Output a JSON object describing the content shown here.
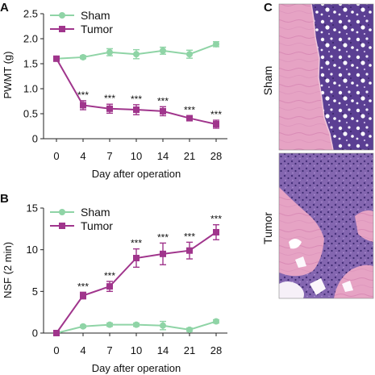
{
  "panels": {
    "a": {
      "letter": "A"
    },
    "b": {
      "letter": "B"
    },
    "c": {
      "letter": "C",
      "top_label": "Sham",
      "bottom_label": "Tumor"
    }
  },
  "chart_data": [
    {
      "panel": "A",
      "type": "line",
      "xlabel": "Day after operation",
      "ylabel": "PWMT (g)",
      "categories": [
        "0",
        "4",
        "7",
        "10",
        "14",
        "21",
        "28"
      ],
      "ylim": [
        0,
        2.5
      ],
      "yticks": [
        "0",
        "0.5",
        "1.0",
        "1.5",
        "2.0",
        "2.5"
      ],
      "legend": "top-left",
      "series": [
        {
          "name": "Sham",
          "color": "#8fd4a6",
          "marker": "circle",
          "values": [
            1.6,
            1.63,
            1.73,
            1.69,
            1.76,
            1.69,
            1.89
          ],
          "errors": [
            0.04,
            0.03,
            0.07,
            0.09,
            0.07,
            0.08,
            0.05
          ]
        },
        {
          "name": "Tumor",
          "color": "#a0358c",
          "marker": "square",
          "values": [
            1.6,
            0.67,
            0.6,
            0.58,
            0.55,
            0.41,
            0.29
          ],
          "errors": [
            0.04,
            0.09,
            0.09,
            0.1,
            0.09,
            0.05,
            0.08
          ],
          "annotations": [
            "",
            "***",
            "***",
            "***",
            "***",
            "***",
            "***"
          ]
        }
      ]
    },
    {
      "panel": "B",
      "type": "line",
      "xlabel": "Day after operation",
      "ylabel": "NSF (2 min)",
      "categories": [
        "0",
        "4",
        "7",
        "10",
        "14",
        "21",
        "28"
      ],
      "ylim": [
        0,
        15
      ],
      "yticks": [
        "0",
        "5",
        "10",
        "15"
      ],
      "legend": "top-left",
      "series": [
        {
          "name": "Sham",
          "color": "#8fd4a6",
          "marker": "circle",
          "values": [
            0,
            0.8,
            1.0,
            1.0,
            0.9,
            0.4,
            1.4
          ],
          "errors": [
            0.1,
            0.15,
            0.2,
            0.2,
            0.5,
            0.2,
            0.2
          ]
        },
        {
          "name": "Tumor",
          "color": "#a0358c",
          "marker": "square",
          "values": [
            0,
            4.5,
            5.6,
            9.0,
            9.5,
            9.9,
            12.1
          ],
          "errors": [
            0.1,
            0.4,
            0.6,
            1.1,
            1.3,
            1.0,
            0.9
          ],
          "annotations": [
            "",
            "***",
            "***",
            "***",
            "***",
            "***",
            "***"
          ]
        }
      ]
    }
  ]
}
